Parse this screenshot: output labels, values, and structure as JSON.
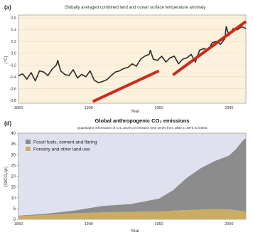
{
  "chart_data": [
    {
      "type": "line",
      "panel_label": "(a)",
      "title": "Globally averaged combined land and ocean surface temperature anomaly",
      "ylabel": "(°C)",
      "xlabel": "Year",
      "xlim": [
        1850,
        2012
      ],
      "ylim": [
        -0.85,
        0.65
      ],
      "x_ticks": [
        1850,
        1900,
        1950,
        2000
      ],
      "y_ticks": [
        0.6,
        0.4,
        0.2,
        0.0,
        -0.2,
        -0.4,
        -0.6,
        -0.8
      ],
      "y_tick_labels": [
        "0.6",
        "0.4",
        "0.2",
        "0.0",
        "-0.2",
        "-0.4",
        "-0.6",
        "-0.8"
      ],
      "series": [
        {
          "x": [
            1850,
            1853,
            1856,
            1859,
            1862,
            1865,
            1868,
            1871,
            1874,
            1877,
            1878,
            1880,
            1883,
            1886,
            1889,
            1892,
            1895,
            1898,
            1901,
            1904,
            1907,
            1910,
            1913,
            1916,
            1919,
            1922,
            1925,
            1928,
            1931,
            1934,
            1937,
            1940,
            1943,
            1944,
            1946,
            1949,
            1952,
            1955,
            1958,
            1961,
            1964,
            1967,
            1970,
            1973,
            1976,
            1979,
            1982,
            1985,
            1988,
            1991,
            1994,
            1997,
            1998,
            2000,
            2003,
            2006,
            2009,
            2012
          ],
          "y": [
            -0.38,
            -0.35,
            -0.44,
            -0.33,
            -0.47,
            -0.3,
            -0.32,
            -0.38,
            -0.27,
            -0.2,
            -0.12,
            -0.3,
            -0.36,
            -0.38,
            -0.28,
            -0.42,
            -0.36,
            -0.4,
            -0.3,
            -0.46,
            -0.5,
            -0.48,
            -0.45,
            -0.38,
            -0.32,
            -0.3,
            -0.26,
            -0.24,
            -0.18,
            -0.22,
            -0.1,
            -0.05,
            -0.02,
            0.05,
            -0.1,
            -0.12,
            -0.05,
            -0.15,
            -0.08,
            -0.05,
            -0.18,
            -0.1,
            -0.08,
            -0.02,
            -0.15,
            0.05,
            0.08,
            0.05,
            0.18,
            0.2,
            0.15,
            0.25,
            0.45,
            0.3,
            0.42,
            0.4,
            0.45,
            0.42
          ]
        }
      ],
      "trend_lines": [
        {
          "x": [
            1903,
            1950
          ],
          "y": [
            -0.82,
            -0.3
          ]
        },
        {
          "x": [
            1960,
            2012
          ],
          "y": [
            -0.37,
            0.54
          ]
        }
      ]
    },
    {
      "type": "area",
      "panel_label": "(d)",
      "title": "Global anthropogenic CO₂ emissions",
      "subtitle": "Quantitative information of CH₄ and N₂O emission time series from 1850 to 1970 is limited",
      "ylabel": "(GtCO₂/yr)",
      "xlabel": "Year",
      "xlim": [
        1850,
        2012
      ],
      "ylim": [
        0,
        40
      ],
      "x_ticks": [
        1850,
        1900,
        1950,
        2000
      ],
      "y_ticks": [
        0,
        5,
        10,
        15,
        20,
        25,
        30,
        35,
        40
      ],
      "series": [
        {
          "name": "Forestry and other land use",
          "x": [
            1850,
            1870,
            1890,
            1910,
            1930,
            1950,
            1960,
            1970,
            1980,
            1990,
            2000,
            2005,
            2010,
            2012
          ],
          "y": [
            1.5,
            2.0,
            2.8,
            3.2,
            3.5,
            3.6,
            4.0,
            4.3,
            4.5,
            4.8,
            4.6,
            4.2,
            3.7,
            3.6
          ]
        },
        {
          "name": "Fossil fuels, cement and flaring",
          "x": [
            1850,
            1870,
            1890,
            1910,
            1930,
            1950,
            1960,
            1970,
            1980,
            1990,
            2000,
            2005,
            2010,
            2012
          ],
          "y": [
            0.2,
            0.6,
            1.3,
            3.0,
            3.6,
            6.0,
            9.5,
            15.0,
            19.3,
            22.3,
            25.0,
            28.5,
            33.0,
            34.0
          ]
        }
      ],
      "colors": {
        "fossil": "#8c8c8c",
        "forestry": "#c9ad63",
        "background": "#dfe1ef",
        "panel_a_background": "#fcf1dc",
        "trend": "#cc2a1b"
      }
    }
  ]
}
